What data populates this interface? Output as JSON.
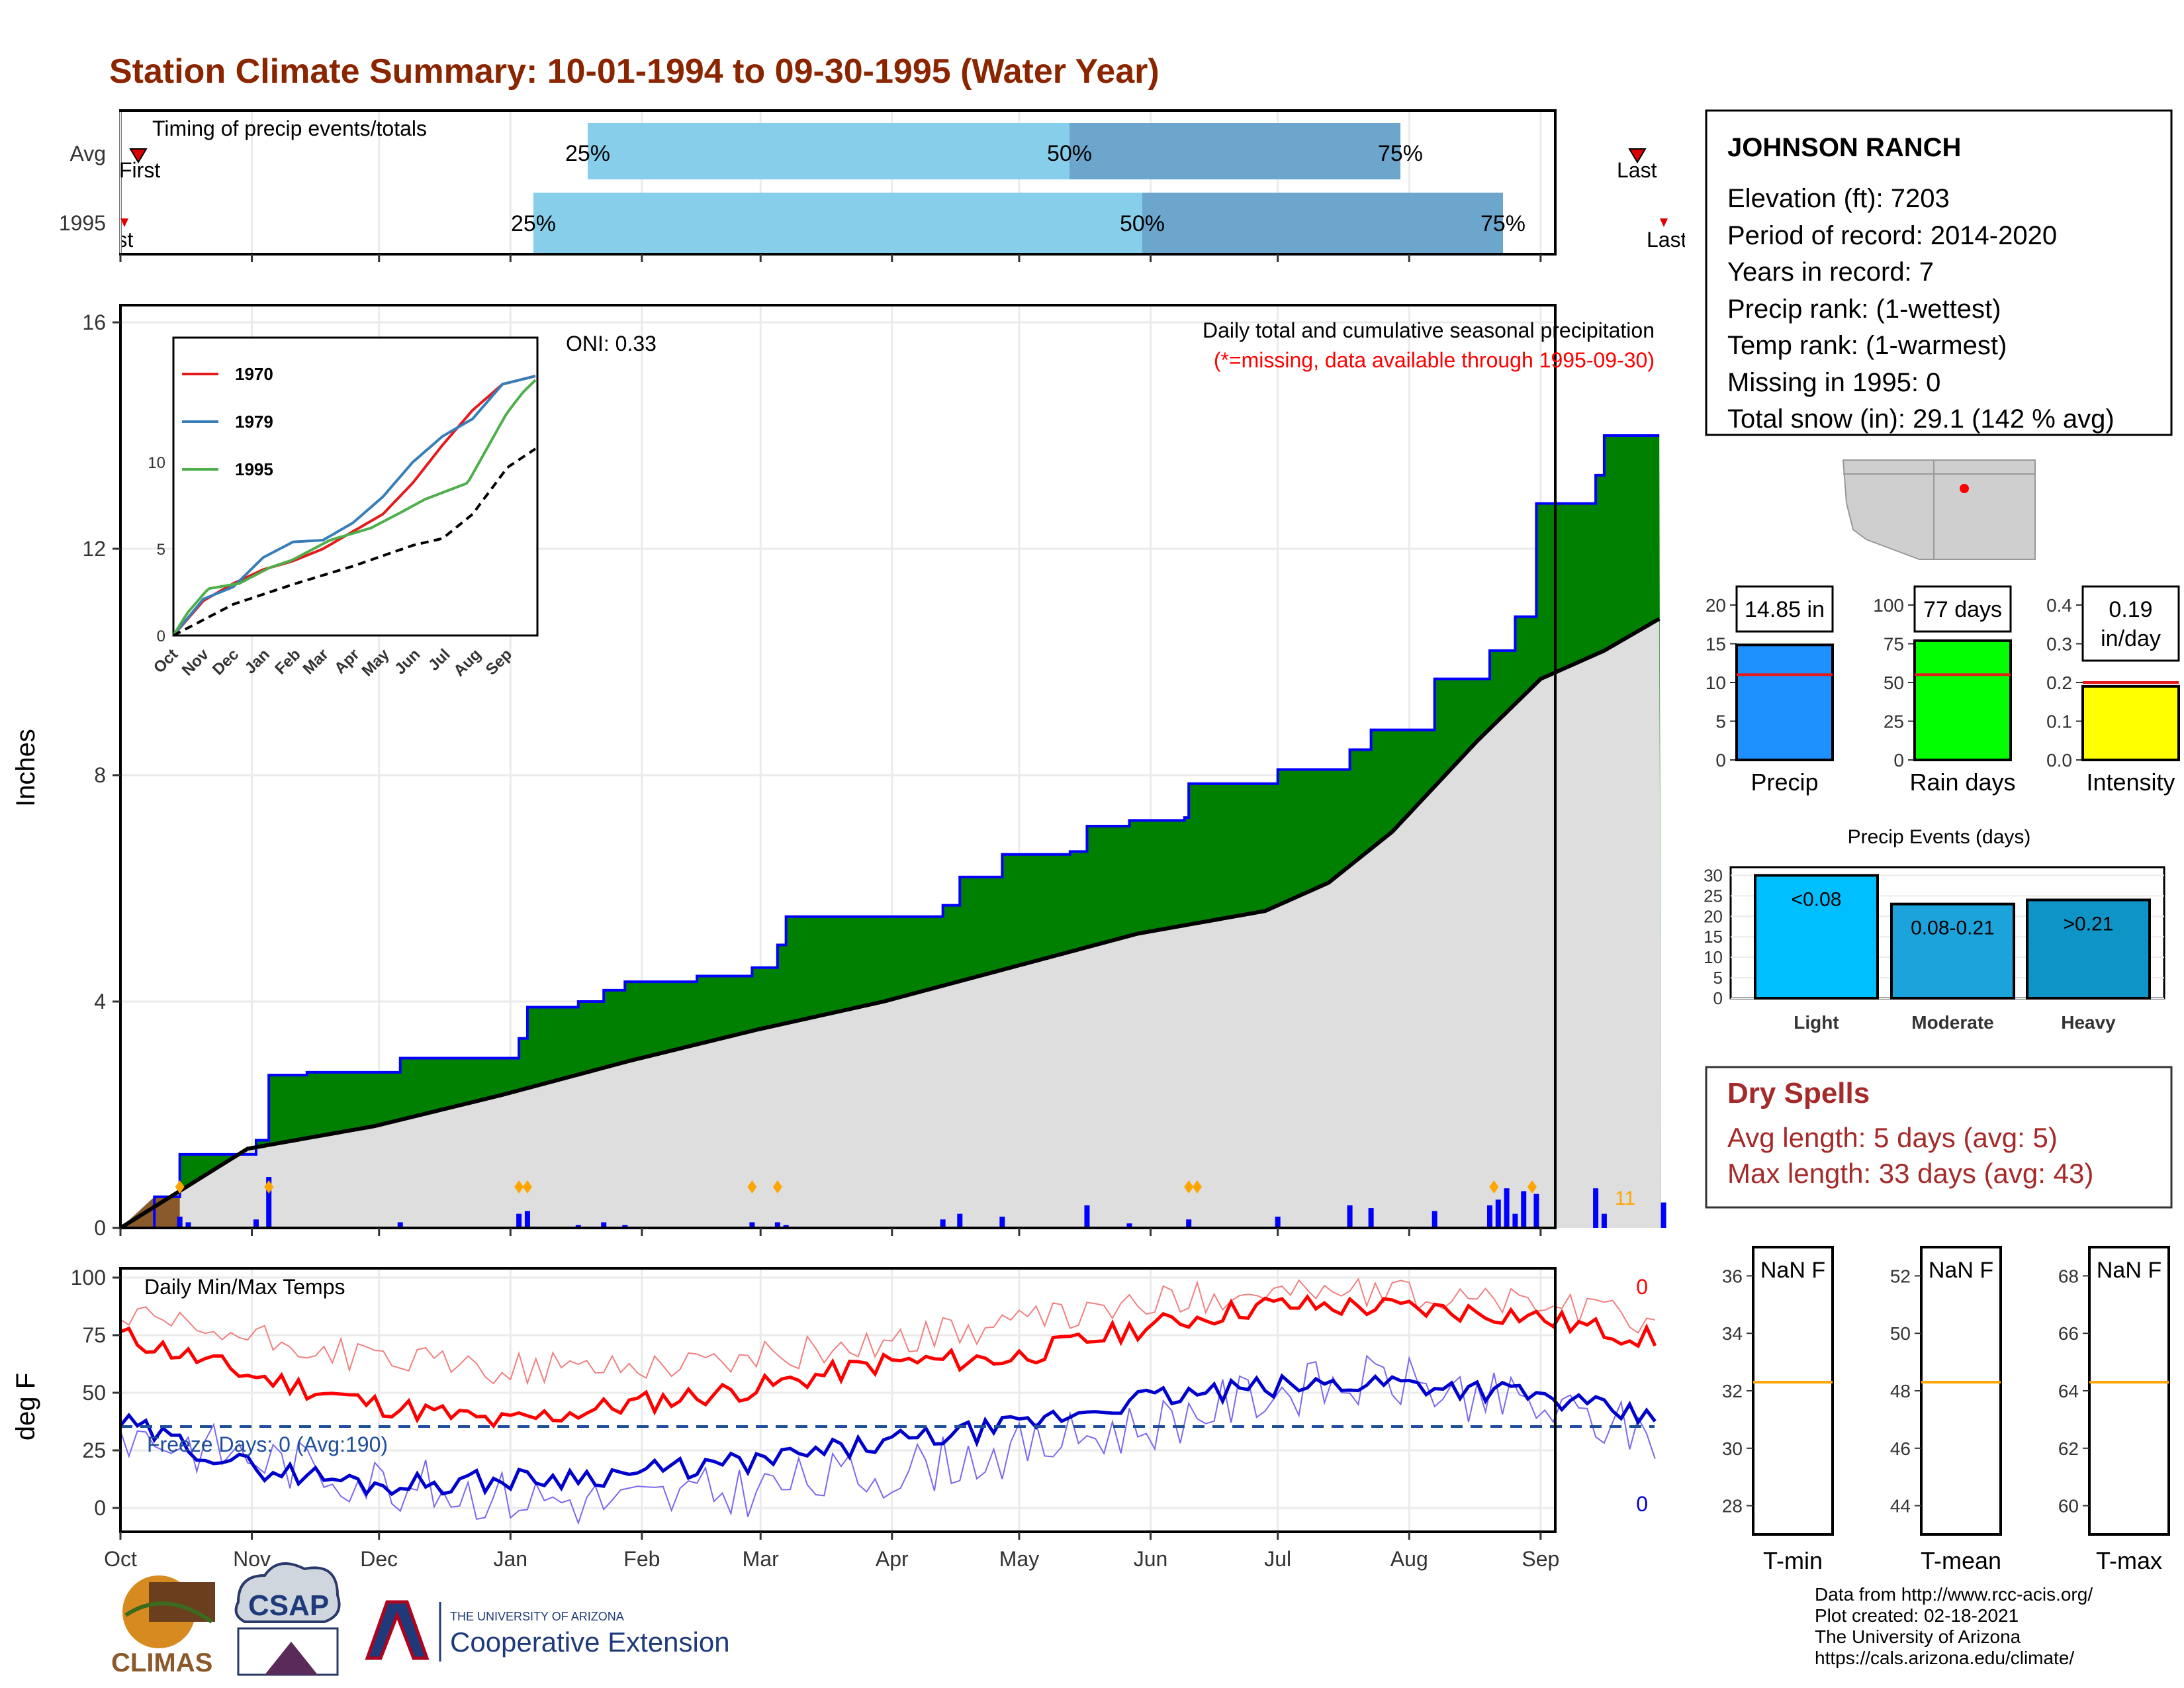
{
  "title": "Station Climate Summary: 10-01-1994 to 09-30-1995 (Water Year)",
  "timing_panel": {
    "title": "Timing of precip events/totals",
    "rows": [
      {
        "label": "Avg",
        "first_label": "First",
        "last_label": "Last",
        "p25": "25%",
        "p50": "50%",
        "p75": "75%"
      },
      {
        "label": "1995",
        "first_label": "First",
        "last_label": "Last",
        "p25": "25%",
        "p50": "50%",
        "p75": "75%"
      }
    ]
  },
  "station": {
    "name": "JOHNSON RANCH",
    "elevation": "Elevation (ft): 7203",
    "period": "Period of record: 2014-2020",
    "years": "Years in record: 7",
    "precip_rank": "Precip rank:  (1-wettest)",
    "temp_rank": "Temp rank:  (1-warmest)",
    "missing": "Missing in 1995: 0",
    "snow": "Total snow (in): 29.1 (142 % avg)"
  },
  "precip_panel": {
    "caption": "Daily total and cumulative seasonal precipitation",
    "missing_note": "(*=missing, data available through 1995-09-30)",
    "oni": "ONI: 0.33",
    "ylabel": "Inches",
    "count_label": "11"
  },
  "temp_panel": {
    "title": "Daily Min/Max Temps",
    "freeze": "Freeze Days: 0 (Avg:190)",
    "ylabel": "deg F",
    "max_count": "0",
    "min_count": "0"
  },
  "month_labels": [
    "Oct",
    "Nov",
    "Dec",
    "Jan",
    "Feb",
    "Mar",
    "Apr",
    "May",
    "Jun",
    "Jul",
    "Aug",
    "Sep"
  ],
  "inset": {
    "legend": [
      "1970",
      "1979",
      "1995"
    ],
    "colors": [
      "#e41a1c",
      "#377eb8",
      "#4daf4a"
    ],
    "month_labels": [
      "Oct",
      "Nov",
      "Dec",
      "Jan",
      "Feb",
      "Mar",
      "Apr",
      "May",
      "Jun",
      "Jul",
      "Aug",
      "Sep"
    ]
  },
  "summary_bars": [
    {
      "label": "Precip",
      "value_label": "14.85 in",
      "value": 14.85,
      "avg": 11,
      "ymax": 20,
      "ticks": [
        "0",
        "5",
        "10",
        "15",
        "20"
      ],
      "color": "#1e90ff"
    },
    {
      "label": "Rain days",
      "value_label": "77 days",
      "value": 77,
      "avg": 55,
      "ymax": 100,
      "ticks": [
        "0",
        "25",
        "50",
        "75",
        "100"
      ],
      "color": "#00ff00"
    },
    {
      "label": "Intensity",
      "value_label": "0.19",
      "value_label2": "in/day",
      "value": 0.19,
      "avg": 0.2,
      "ymax": 0.4,
      "ticks": [
        "0.0",
        "0.1",
        "0.2",
        "0.3",
        "0.4"
      ],
      "color": "#ffff00"
    }
  ],
  "precip_events": {
    "title": "Precip Events (days)",
    "ticks": [
      "0",
      "5",
      "10",
      "15",
      "20",
      "25",
      "30"
    ],
    "bars": [
      {
        "label": "Light",
        "range": "<0.08",
        "value": 30,
        "color": "#00bfff"
      },
      {
        "label": "Moderate",
        "range": "0.08-0.21",
        "value": 23,
        "color": "#1ca3dc"
      },
      {
        "label": "Heavy",
        "range": ">0.21",
        "value": 24,
        "color": "#0f94c8"
      }
    ]
  },
  "dry_spells": {
    "title": "Dry Spells",
    "avg": "Avg length: 5 days (avg: 5)",
    "max": "Max length: 33 days (avg: 43)"
  },
  "temp_boxes": [
    {
      "label": "T-min",
      "value": "NaN F",
      "ticks": [
        "28",
        "30",
        "32",
        "34",
        "36"
      ],
      "avg": 32.3
    },
    {
      "label": "T-mean",
      "value": "NaN F",
      "ticks": [
        "44",
        "46",
        "48",
        "50",
        "52"
      ],
      "avg": 48.3
    },
    {
      "label": "T-max",
      "value": "NaN F",
      "ticks": [
        "60",
        "62",
        "64",
        "66",
        "68"
      ],
      "avg": 64.3
    }
  ],
  "footer": [
    "Data from http://www.rcc-acis.org/",
    "Plot created: 02-18-2021",
    "The University of Arizona",
    "https://cals.arizona.edu/climate/"
  ],
  "logos": {
    "climas": "CLIMAS",
    "csap": "CSAP",
    "ua_small": "THE UNIVERSITY OF ARIZONA",
    "ua_ext": "Cooperative Extension"
  },
  "chart_data": [
    {
      "type": "area",
      "title": "Daily total and cumulative seasonal precipitation",
      "ylabel": "Inches",
      "ylim": [
        0,
        16
      ],
      "yticks": [
        0,
        4,
        8,
        12,
        16
      ],
      "x": [
        "Oct",
        "Nov",
        "Dec",
        "Jan",
        "Feb",
        "Mar",
        "Apr",
        "May",
        "Jun",
        "Jul",
        "Aug",
        "Sep"
      ],
      "series": [
        {
          "name": "1995 cumulative",
          "points": [
            [
              0,
              0
            ],
            [
              8,
              0.55
            ],
            [
              14,
              1.3
            ],
            [
              32,
              1.55
            ],
            [
              35,
              2.7
            ],
            [
              44,
              2.75
            ],
            [
              66,
              3.0
            ],
            [
              94,
              3.35
            ],
            [
              96,
              3.9
            ],
            [
              108,
              4.0
            ],
            [
              114,
              4.2
            ],
            [
              119,
              4.35
            ],
            [
              136,
              4.45
            ],
            [
              149,
              4.6
            ],
            [
              155,
              5.0
            ],
            [
              157,
              5.5
            ],
            [
              186,
              5.5
            ],
            [
              194,
              5.7
            ],
            [
              198,
              6.2
            ],
            [
              208,
              6.6
            ],
            [
              224,
              6.65
            ],
            [
              228,
              7.1
            ],
            [
              238,
              7.2
            ],
            [
              251,
              7.25
            ],
            [
              252,
              7.85
            ],
            [
              273,
              8.1
            ],
            [
              290,
              8.45
            ],
            [
              295,
              8.8
            ],
            [
              310,
              9.7
            ],
            [
              323,
              10.2
            ],
            [
              329,
              10.8
            ],
            [
              334,
              12.8
            ],
            [
              348,
              13.3
            ],
            [
              350,
              14.0
            ],
            [
              364,
              14.2
            ],
            [
              365,
              14.85
            ]
          ]
        },
        {
          "name": "Average cumulative",
          "points": [
            [
              0,
              0
            ],
            [
              30,
              1.4
            ],
            [
              60,
              1.8
            ],
            [
              90,
              2.35
            ],
            [
              120,
              2.95
            ],
            [
              150,
              3.5
            ],
            [
              180,
              4.0
            ],
            [
              210,
              4.6
            ],
            [
              240,
              5.2
            ],
            [
              270,
              5.6
            ],
            [
              285,
              6.1
            ],
            [
              300,
              7.0
            ],
            [
              320,
              8.6
            ],
            [
              335,
              9.7
            ],
            [
              350,
              10.2
            ],
            [
              365,
              10.85
            ]
          ]
        }
      ]
    },
    {
      "type": "line",
      "title": "Daily Min/Max Temps",
      "ylabel": "deg F",
      "ylim": [
        -10,
        100
      ],
      "yticks": [
        0,
        25,
        50,
        75,
        100
      ],
      "series": [
        {
          "name": "Max",
          "points": [
            [
              0,
              75
            ],
            [
              30,
              58
            ],
            [
              60,
              45
            ],
            [
              90,
              37
            ],
            [
              120,
              45
            ],
            [
              150,
              52
            ],
            [
              180,
              63
            ],
            [
              210,
              65
            ],
            [
              240,
              78
            ],
            [
              270,
              88
            ],
            [
              300,
              87
            ],
            [
              330,
              84
            ],
            [
              365,
              72
            ]
          ]
        },
        {
          "name": "Min",
          "points": [
            [
              0,
              37
            ],
            [
              30,
              18
            ],
            [
              60,
              10
            ],
            [
              90,
              12
            ],
            [
              120,
              15
            ],
            [
              150,
              20
            ],
            [
              180,
              28
            ],
            [
              210,
              35
            ],
            [
              240,
              47
            ],
            [
              270,
              52
            ],
            [
              300,
              55
            ],
            [
              330,
              50
            ],
            [
              365,
              37
            ]
          ]
        },
        {
          "name": "Avg Max",
          "points": [
            [
              0,
              82
            ],
            [
              60,
              65
            ],
            [
              90,
              60
            ],
            [
              120,
              62
            ],
            [
              150,
              65
            ],
            [
              180,
              72
            ],
            [
              240,
              88
            ],
            [
              270,
              95
            ],
            [
              300,
              92
            ],
            [
              330,
              90
            ],
            [
              365,
              80
            ]
          ]
        },
        {
          "name": "Avg Min",
          "points": [
            [
              0,
              33
            ],
            [
              60,
              12
            ],
            [
              90,
              5
            ],
            [
              120,
              2
            ],
            [
              150,
              8
            ],
            [
              180,
              15
            ],
            [
              240,
              35
            ],
            [
              270,
              50
            ],
            [
              300,
              55
            ],
            [
              330,
              45
            ],
            [
              365,
              30
            ]
          ]
        }
      ]
    },
    {
      "type": "line",
      "title": "Inset cumulative precipitation",
      "ylim": [
        0,
        17
      ],
      "yticks": [
        0,
        5,
        10
      ],
      "series": [
        {
          "name": "1970",
          "points": [
            [
              0,
              0
            ],
            [
              15,
              1
            ],
            [
              30,
              2
            ],
            [
              60,
              3
            ],
            [
              90,
              3.8
            ],
            [
              120,
              4.3
            ],
            [
              150,
              5
            ],
            [
              180,
              6
            ],
            [
              210,
              7
            ],
            [
              240,
              8.8
            ],
            [
              270,
              11
            ],
            [
              300,
              13
            ],
            [
              330,
              14.5
            ],
            [
              365,
              15
            ]
          ]
        },
        {
          "name": "1979",
          "points": [
            [
              0,
              0
            ],
            [
              30,
              2.1
            ],
            [
              60,
              2.8
            ],
            [
              90,
              4.5
            ],
            [
              120,
              5.4
            ],
            [
              150,
              5.5
            ],
            [
              180,
              6.5
            ],
            [
              210,
              8
            ],
            [
              240,
              10
            ],
            [
              270,
              11.5
            ],
            [
              300,
              12.5
            ],
            [
              330,
              14.5
            ],
            [
              365,
              15
            ]
          ]
        },
        {
          "name": "1995",
          "points": [
            [
              0,
              0
            ],
            [
              14,
              1.3
            ],
            [
              35,
              2.7
            ],
            [
              66,
              3.0
            ],
            [
              96,
              3.9
            ],
            [
              119,
              4.35
            ],
            [
              157,
              5.5
            ],
            [
              198,
              6.2
            ],
            [
              228,
              7.1
            ],
            [
              252,
              7.85
            ],
            [
              295,
              8.8
            ],
            [
              334,
              12.8
            ],
            [
              350,
              14.0
            ],
            [
              365,
              14.85
            ]
          ]
        },
        {
          "name": "Average",
          "points": [
            [
              0,
              0
            ],
            [
              60,
              1.8
            ],
            [
              120,
              2.95
            ],
            [
              180,
              4.0
            ],
            [
              240,
              5.2
            ],
            [
              270,
              5.6
            ],
            [
              300,
              7.0
            ],
            [
              335,
              9.7
            ],
            [
              365,
              10.85
            ]
          ]
        }
      ]
    }
  ]
}
